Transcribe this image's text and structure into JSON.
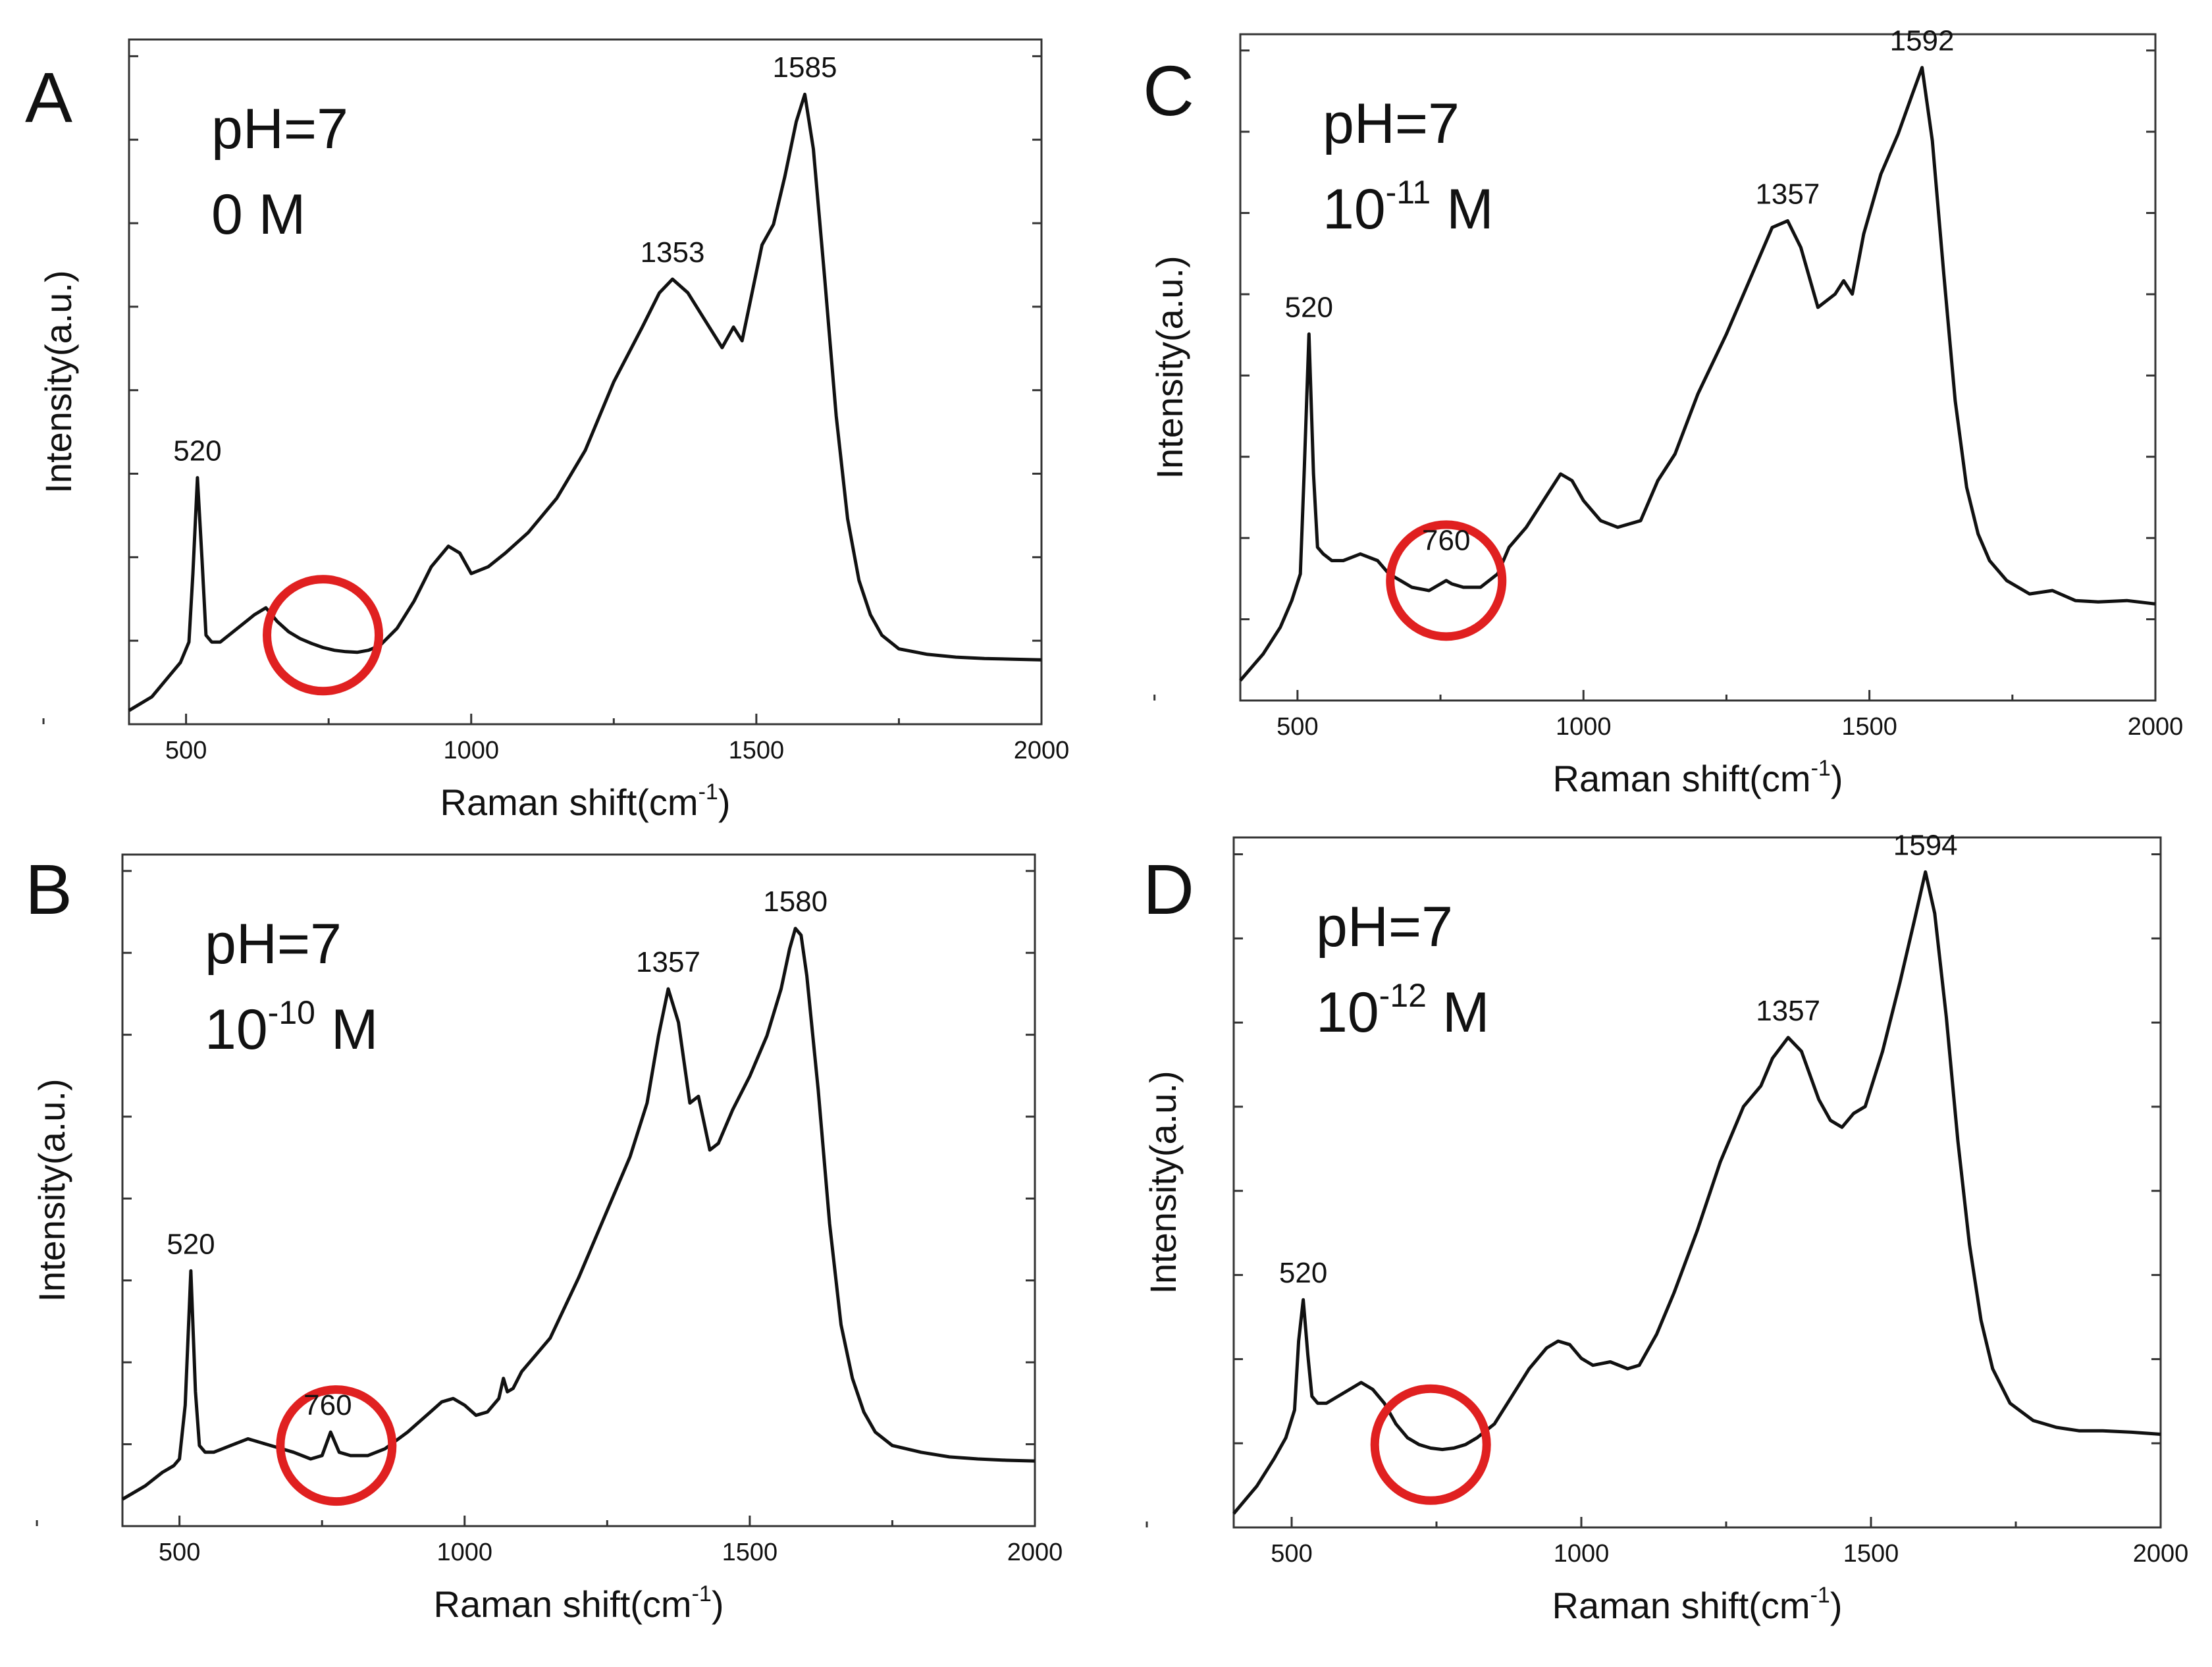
{
  "chart_data": [
    {
      "panel": "A",
      "type": "line",
      "annotation": {
        "ph": "pH=7",
        "conc_base": "0 M",
        "conc_exp": ""
      },
      "xlabel": "Raman shift(cm",
      "xlabel_sup": "-1",
      "xlabel_close": ")",
      "ylabel": "Intensity(a.u.)",
      "xlim": [
        400,
        2000
      ],
      "ylim": [
        0,
        100
      ],
      "xticks": [
        "500",
        "1000",
        "1500",
        "2000"
      ],
      "grid": false,
      "peak_labels": [
        {
          "x": 520,
          "y": 36,
          "text": "520"
        },
        {
          "x": 1353,
          "y": 65,
          "text": "1353"
        },
        {
          "x": 1585,
          "y": 92,
          "text": "1585"
        }
      ],
      "circle": {
        "x": 740,
        "y": 13,
        "label": ""
      },
      "series": [
        {
          "x": [
            400,
            440,
            470,
            490,
            505,
            512,
            520,
            528,
            535,
            545,
            560,
            590,
            620,
            640,
            660,
            680,
            700,
            720,
            740,
            760,
            780,
            800,
            820,
            840,
            870,
            900,
            930,
            960,
            980,
            1000,
            1030,
            1060,
            1100,
            1150,
            1200,
            1250,
            1300,
            1330,
            1353,
            1380,
            1410,
            1440,
            1460,
            1475,
            1490,
            1510,
            1530,
            1550,
            1570,
            1585,
            1600,
            1620,
            1640,
            1660,
            1680,
            1700,
            1720,
            1750,
            1800,
            1850,
            1900,
            1950,
            2000
          ],
          "y": [
            2,
            4,
            7,
            9,
            12,
            22,
            36,
            24,
            13,
            12,
            12,
            14,
            16,
            17,
            15,
            13.5,
            12.5,
            11.8,
            11.2,
            10.8,
            10.6,
            10.5,
            10.8,
            11.5,
            14,
            18,
            23,
            26,
            25,
            22,
            23,
            25,
            28,
            33,
            40,
            50,
            58,
            63,
            65,
            63,
            59,
            55,
            58,
            56,
            62,
            70,
            73,
            80,
            88,
            92,
            84,
            65,
            45,
            30,
            21,
            16,
            13,
            11,
            10.2,
            9.8,
            9.6,
            9.5,
            9.4
          ]
        }
      ]
    },
    {
      "panel": "C",
      "type": "line",
      "annotation": {
        "ph": "pH=7",
        "conc_base": "10",
        "conc_exp": "-11",
        "conc_unit": " M"
      },
      "xlabel": "Raman shift(cm",
      "xlabel_sup": "-1",
      "xlabel_close": ")",
      "ylabel": "Intensity(a.u.)",
      "xlim": [
        400,
        2000
      ],
      "ylim": [
        0,
        100
      ],
      "xticks": [
        "500",
        "1000",
        "1500",
        "2000"
      ],
      "grid": false,
      "peak_labels": [
        {
          "x": 520,
          "y": 55,
          "text": "520"
        },
        {
          "x": 760,
          "y": 20,
          "text": "760"
        },
        {
          "x": 1357,
          "y": 72,
          "text": "1357"
        },
        {
          "x": 1592,
          "y": 95,
          "text": "1592"
        }
      ],
      "circle": {
        "x": 760,
        "y": 18,
        "label": "760"
      },
      "series": [
        {
          "x": [
            400,
            440,
            470,
            490,
            505,
            512,
            520,
            528,
            535,
            545,
            560,
            580,
            610,
            640,
            660,
            680,
            700,
            730,
            750,
            760,
            770,
            790,
            820,
            850,
            870,
            900,
            930,
            960,
            980,
            1000,
            1030,
            1060,
            1100,
            1130,
            1160,
            1200,
            1250,
            1300,
            1330,
            1357,
            1380,
            1410,
            1440,
            1455,
            1470,
            1490,
            1520,
            1550,
            1575,
            1592,
            1610,
            1630,
            1650,
            1670,
            1690,
            1710,
            1740,
            1780,
            1820,
            1860,
            1900,
            1950,
            2000
          ],
          "y": [
            3,
            7,
            11,
            15,
            19,
            35,
            55,
            34,
            23,
            22,
            21,
            21,
            22,
            21,
            19,
            18,
            17,
            16.5,
            17.5,
            18,
            17.5,
            17,
            17,
            19,
            23,
            26,
            30,
            34,
            33,
            30,
            27,
            26,
            27,
            33,
            37,
            46,
            55,
            65,
            71,
            72,
            68,
            59,
            61,
            63,
            61,
            70,
            79,
            85,
            91,
            95,
            84,
            64,
            45,
            32,
            25,
            21,
            18,
            16,
            16.5,
            15,
            14.8,
            15,
            14.5
          ]
        }
      ]
    },
    {
      "panel": "B",
      "type": "line",
      "annotation": {
        "ph": "pH=7",
        "conc_base": "10",
        "conc_exp": "-10",
        "conc_unit": " M"
      },
      "xlabel": "Raman shift(cm",
      "xlabel_sup": "-1",
      "xlabel_close": ")",
      "ylabel": "Intensity(a.u.)",
      "xlim": [
        400,
        2000
      ],
      "ylim": [
        0,
        100
      ],
      "xticks": [
        "500",
        "1000",
        "1500",
        "2000"
      ],
      "grid": false,
      "peak_labels": [
        {
          "x": 520,
          "y": 38,
          "text": "520"
        },
        {
          "x": 760,
          "y": 14,
          "text": "760"
        },
        {
          "x": 1357,
          "y": 80,
          "text": "1357"
        },
        {
          "x": 1580,
          "y": 89,
          "text": "1580"
        }
      ],
      "circle": {
        "x": 775,
        "y": 12,
        "label": "760"
      },
      "series": [
        {
          "x": [
            400,
            440,
            470,
            490,
            500,
            510,
            520,
            528,
            535,
            545,
            560,
            590,
            620,
            660,
            700,
            730,
            750,
            765,
            780,
            800,
            830,
            860,
            900,
            940,
            960,
            980,
            1000,
            1020,
            1040,
            1060,
            1068,
            1075,
            1085,
            1100,
            1150,
            1200,
            1250,
            1290,
            1320,
            1340,
            1357,
            1375,
            1395,
            1410,
            1420,
            1430,
            1445,
            1470,
            1500,
            1530,
            1555,
            1570,
            1580,
            1590,
            1600,
            1620,
            1640,
            1660,
            1680,
            1700,
            1720,
            1750,
            1800,
            1850,
            1900,
            1950,
            2000
          ],
          "y": [
            4,
            6,
            8,
            9,
            10,
            18,
            38,
            20,
            12,
            11,
            11,
            12,
            13,
            12,
            11,
            10,
            10.5,
            14,
            11,
            10.5,
            10.5,
            11.5,
            14,
            17,
            18.5,
            19,
            18,
            16.5,
            17,
            19,
            22,
            20,
            20.5,
            23,
            28,
            37,
            47,
            55,
            63,
            73,
            80,
            75,
            63,
            64,
            60,
            56,
            57,
            62,
            67,
            73,
            80,
            86,
            89,
            88,
            82,
            65,
            45,
            30,
            22,
            17,
            14,
            12,
            11,
            10.3,
            10,
            9.8,
            9.7
          ]
        }
      ]
    },
    {
      "panel": "D",
      "type": "line",
      "annotation": {
        "ph": "pH=7",
        "conc_base": "10",
        "conc_exp": "-12",
        "conc_unit": " M"
      },
      "xlabel": "Raman shift(cm",
      "xlabel_sup": "-1",
      "xlabel_close": ")",
      "ylabel": "Intensity(a.u.)",
      "xlim": [
        400,
        2000
      ],
      "ylim": [
        0,
        100
      ],
      "xticks": [
        "500",
        "1000",
        "1500",
        "2000"
      ],
      "grid": false,
      "peak_labels": [
        {
          "x": 520,
          "y": 33,
          "text": "520"
        },
        {
          "x": 1357,
          "y": 71,
          "text": "1357"
        },
        {
          "x": 1594,
          "y": 95,
          "text": "1594"
        }
      ],
      "circle": {
        "x": 740,
        "y": 12,
        "label": ""
      },
      "series": [
        {
          "x": [
            400,
            440,
            470,
            490,
            505,
            512,
            520,
            528,
            535,
            545,
            560,
            590,
            620,
            640,
            660,
            680,
            700,
            720,
            740,
            760,
            780,
            800,
            820,
            850,
            880,
            910,
            940,
            960,
            980,
            1000,
            1020,
            1050,
            1080,
            1100,
            1130,
            1160,
            1200,
            1240,
            1280,
            1310,
            1330,
            1357,
            1380,
            1410,
            1430,
            1450,
            1470,
            1490,
            1520,
            1550,
            1575,
            1594,
            1610,
            1630,
            1650,
            1670,
            1690,
            1710,
            1740,
            1780,
            1820,
            1860,
            1900,
            1950,
            2000
          ],
          "y": [
            2,
            6,
            10,
            13,
            17,
            27,
            33,
            25,
            19,
            18,
            18,
            19.5,
            21,
            20,
            18,
            15,
            13,
            12,
            11.5,
            11.3,
            11.5,
            12,
            13,
            15,
            19,
            23,
            26,
            27,
            26.5,
            24.5,
            23.5,
            24,
            23,
            23.5,
            28,
            34,
            43,
            53,
            61,
            64,
            68,
            71,
            69,
            62,
            59,
            58,
            60,
            61,
            69,
            79,
            88,
            95,
            89,
            74,
            56,
            41,
            30,
            23,
            18,
            15.5,
            14.5,
            14,
            14,
            13.8,
            13.5
          ]
        }
      ]
    }
  ]
}
